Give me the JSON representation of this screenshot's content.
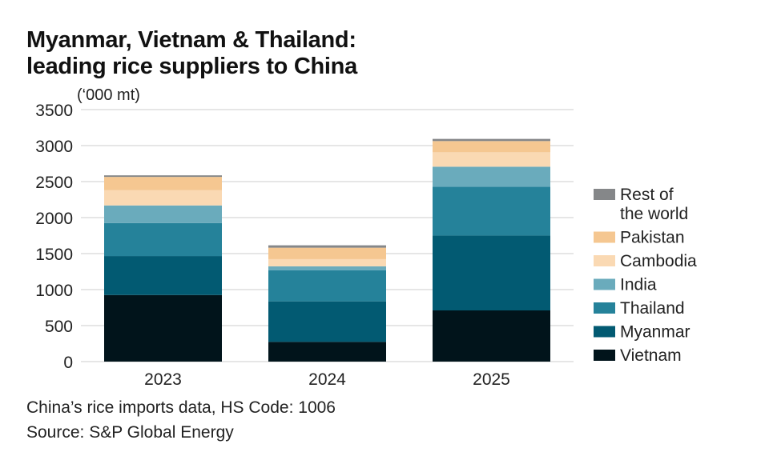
{
  "title_lines": [
    "Myanmar, Vietnam & Thailand:",
    "leading rice suppliers to China"
  ],
  "unit_label": "(‘000 mt)",
  "footnote": {
    "line1": "China’s rice imports data, HS Code: 1006",
    "line2": "Source: S&P Global Energy"
  },
  "chart_data": {
    "type": "bar",
    "stacked": true,
    "title": "Myanmar, Vietnam & Thailand: leading rice suppliers to China",
    "xlabel": "",
    "ylabel": "(‘000 mt)",
    "ylim": [
      0,
      3500
    ],
    "yticks": [
      0,
      500,
      1000,
      1500,
      2000,
      2500,
      3000,
      3500
    ],
    "grid": true,
    "legend_position": "right",
    "categories": [
      "2023",
      "2024",
      "2025"
    ],
    "series": [
      {
        "name": "Vietnam",
        "color": "#01141b",
        "values": [
          925,
          274,
          711
        ]
      },
      {
        "name": "Myanmar",
        "color": "#025a72",
        "values": [
          541,
          563,
          1040
        ]
      },
      {
        "name": "Thailand",
        "color": "#25829a",
        "values": [
          459,
          430,
          678
        ]
      },
      {
        "name": "India",
        "color": "#6aabbc",
        "values": [
          244,
          56,
          278
        ]
      },
      {
        "name": "Cambodia",
        "color": "#fad9b3",
        "values": [
          211,
          100,
          200
        ]
      },
      {
        "name": "Pakistan",
        "color": "#f5c791",
        "values": [
          185,
          159,
          156
        ]
      },
      {
        "name": "Rest of the world",
        "label_lines": [
          "Rest of",
          "the world"
        ],
        "color": "#858789",
        "values": [
          22,
          33,
          30
        ]
      }
    ]
  }
}
